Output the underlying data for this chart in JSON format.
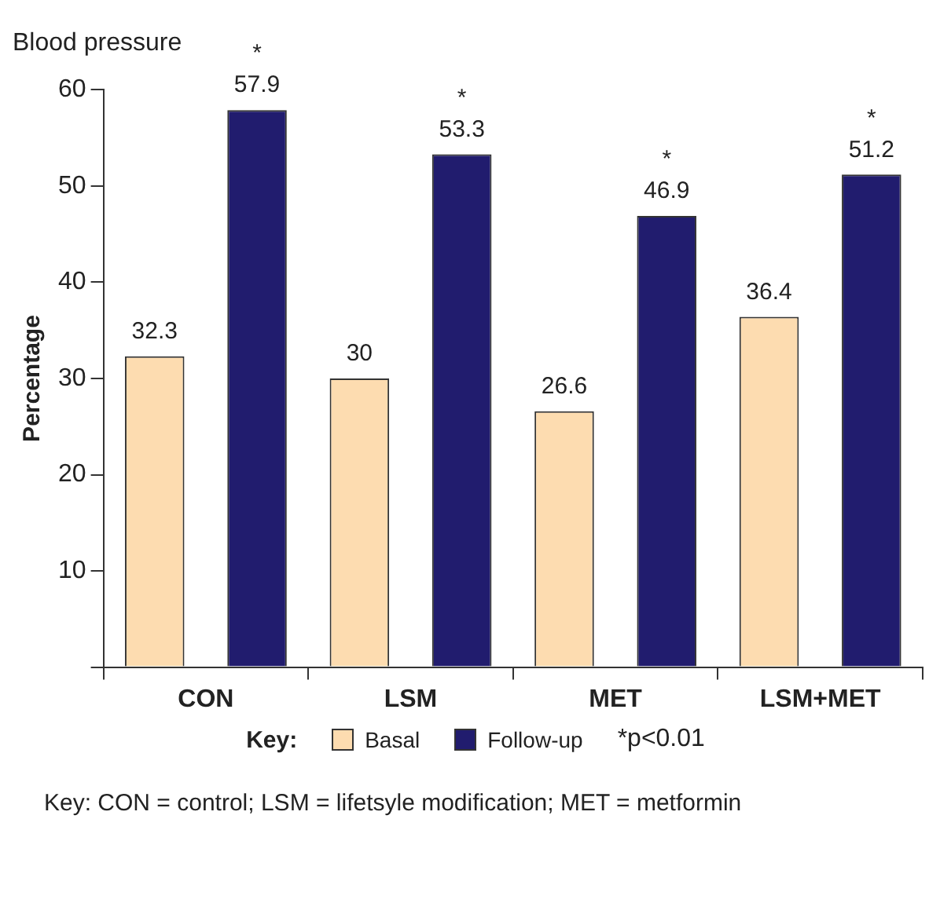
{
  "chart_data": {
    "type": "bar",
    "title": "Blood pressure",
    "ylabel": "Percentage",
    "legend_title": "Key:",
    "categories": [
      "CON",
      "LSM",
      "MET",
      "LSM+MET"
    ],
    "series": [
      {
        "name": "Basal",
        "color": "#fddcb0",
        "values": [
          32.3,
          30,
          26.6,
          36.4
        ]
      },
      {
        "name": "Follow-up",
        "color": "#211c6e",
        "values": [
          57.9,
          53.3,
          46.9,
          51.2
        ]
      }
    ],
    "ylim": [
      0,
      60
    ],
    "yticks": [
      {
        "value": 0,
        "label": null
      },
      10,
      20,
      30,
      40,
      50,
      60
    ],
    "grid": false,
    "legend": "bottom",
    "data_labels": true,
    "annotations": [
      "*",
      "*",
      "*",
      "*",
      "*p<0.01",
      "Key: CON = control; LSM = lifetsyle modification; MET = metformin"
    ]
  }
}
